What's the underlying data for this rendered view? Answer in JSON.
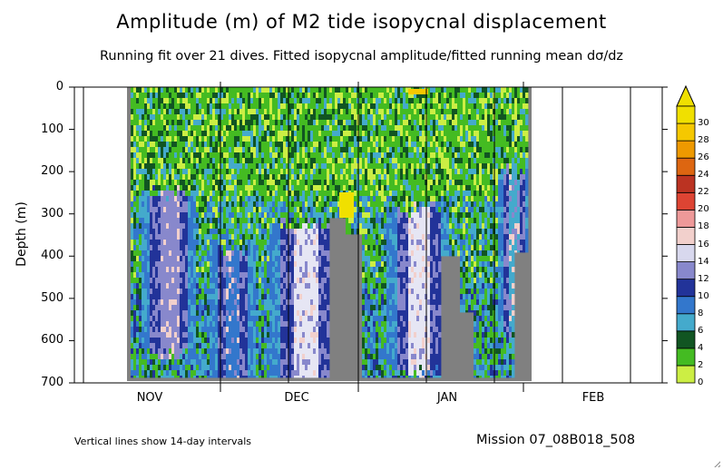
{
  "chart_data": {
    "type": "heatmap",
    "title": "Amplitude (m) of M2 tide isopycnal displacement",
    "subtitle": "Running fit over 21 dives. Fitted isopycnal amplitude/fitted running mean dσ/dz",
    "ylabel": "Depth (m)",
    "xlabel": "",
    "y_ticks": [
      "0",
      "100",
      "200",
      "300",
      "400",
      "500",
      "600",
      "700"
    ],
    "ylim": [
      0,
      700
    ],
    "x_tick_labels": [
      "NOV",
      "DEC",
      "JAN",
      "FEB"
    ],
    "colorbar": {
      "units": "m",
      "levels": [
        "30",
        "28",
        "26",
        "24",
        "22",
        "20",
        "18",
        "16",
        "14",
        "12",
        "10",
        "8",
        "6",
        "4",
        "2",
        "0"
      ],
      "colors": [
        "#f5f5a0",
        "#ccee44",
        "#44bb22",
        "#115522",
        "#44aacc",
        "#3377cc",
        "#223399",
        "#8888cc",
        "#d8d8ee",
        "#f2d0cc",
        "#ee9999",
        "#dd4433",
        "#bb3322",
        "#dd6611",
        "#ee9900",
        "#f5c800",
        "#f0e000"
      ]
    },
    "note": "Vertical lines show 14-day intervals",
    "mission": "Mission 07_08B018_508"
  }
}
